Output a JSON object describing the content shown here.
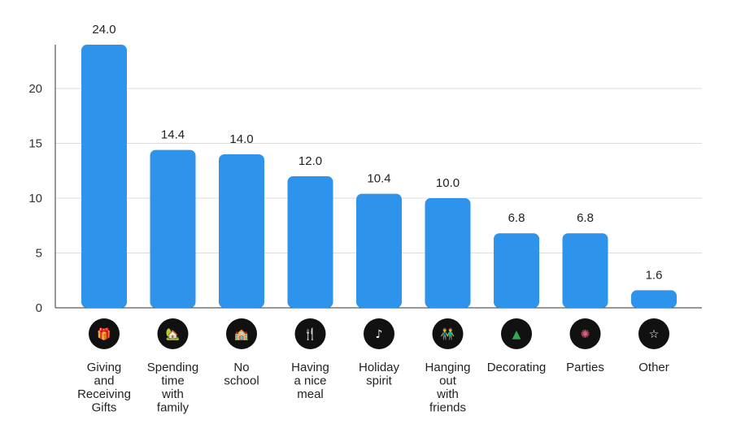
{
  "chart_data": {
    "type": "bar",
    "title": "",
    "xlabel": "",
    "ylabel": "",
    "ylim": [
      0,
      24
    ],
    "yticks": [
      0,
      5,
      10,
      15,
      20
    ],
    "grid": true,
    "bar_color": "#2e93ea",
    "icon_bg_color": "#111111",
    "categories": [
      {
        "label_lines": [
          "Giving",
          "and",
          "Receiving",
          "Gifts"
        ],
        "value": 24.0,
        "value_label": "24.0",
        "icon": "gift-icon",
        "glyph": "🎁",
        "glyph_color": "#e8473b"
      },
      {
        "label_lines": [
          "Spending",
          "time",
          "with",
          "family"
        ],
        "value": 14.4,
        "value_label": "14.4",
        "icon": "family-house-icon",
        "glyph": "🏡",
        "glyph_color": "#e96aa5"
      },
      {
        "label_lines": [
          "No",
          "school"
        ],
        "value": 14.0,
        "value_label": "14.0",
        "icon": "school-icon",
        "glyph": "🏫",
        "glyph_color": "#e0483c"
      },
      {
        "label_lines": [
          "Having",
          "a nice",
          "meal"
        ],
        "value": 12.0,
        "value_label": "12.0",
        "icon": "meal-icon",
        "glyph": "🍴",
        "glyph_color": "#ffffff"
      },
      {
        "label_lines": [
          "Holiday",
          "spirit"
        ],
        "value": 10.4,
        "value_label": "10.4",
        "icon": "dancing-icon",
        "glyph": "♪",
        "glyph_color": "#ffffff"
      },
      {
        "label_lines": [
          "Hanging",
          "out",
          "with",
          "friends"
        ],
        "value": 10.0,
        "value_label": "10.0",
        "icon": "friends-icon",
        "glyph": "👬",
        "glyph_color": "#ffffff"
      },
      {
        "label_lines": [
          "Decorating"
        ],
        "value": 6.8,
        "value_label": "6.8",
        "icon": "christmas-tree-icon",
        "glyph": "▲",
        "glyph_color": "#2fa84f"
      },
      {
        "label_lines": [
          "Parties"
        ],
        "value": 6.8,
        "value_label": "6.8",
        "icon": "party-icon",
        "glyph": "✺",
        "glyph_color": "#e9587b"
      },
      {
        "label_lines": [
          "Other"
        ],
        "value": 1.6,
        "value_label": "1.6",
        "icon": "star-icon",
        "glyph": "☆",
        "glyph_color": "#ffffff"
      }
    ]
  }
}
